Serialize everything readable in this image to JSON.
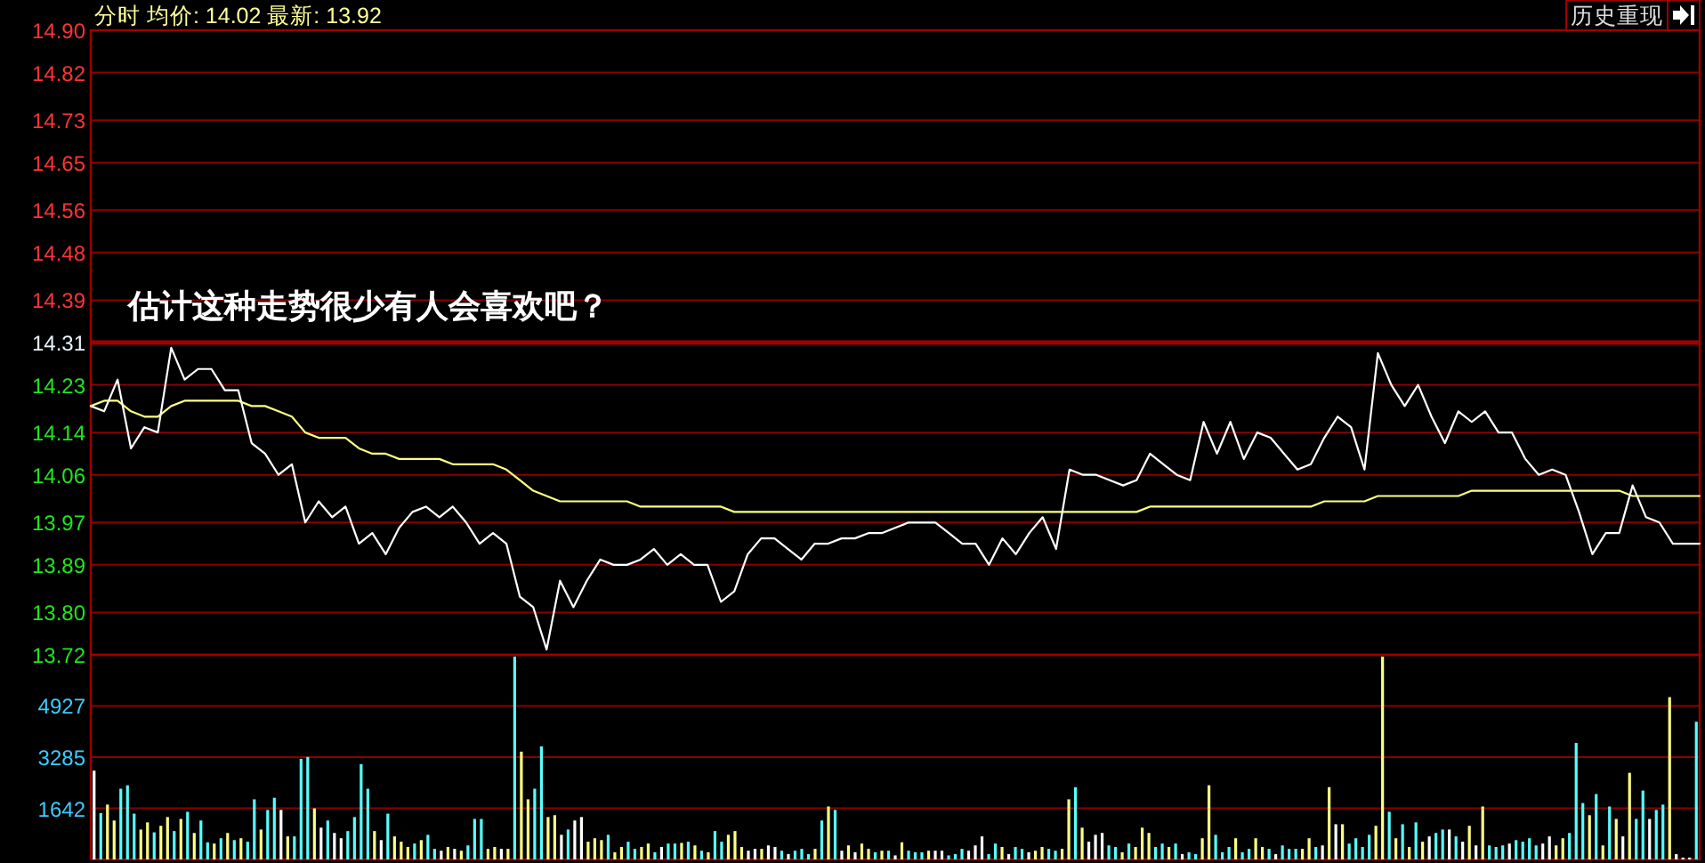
{
  "chart_data": [
    {
      "type": "line",
      "title": "分时 均价: 14.02 最新: 13.92",
      "annotations": [
        "估计这种走势很少有人会喜欢吧？",
        "历史重现"
      ],
      "categories": [
        null,
        null,
        null,
        null,
        null,
        null,
        null,
        null,
        null,
        null,
        null,
        null,
        null,
        null,
        null,
        null,
        null,
        null,
        null,
        null,
        null,
        null,
        null,
        null,
        null,
        null,
        null,
        null,
        null,
        null,
        null,
        null,
        null,
        null,
        null,
        null,
        null,
        null,
        null,
        null,
        null,
        null,
        null,
        null,
        null,
        null,
        null,
        null,
        null,
        null,
        null,
        null,
        null,
        null,
        null,
        null,
        null,
        null,
        null,
        null,
        null,
        null,
        null,
        null,
        null,
        null,
        null,
        null,
        null,
        null,
        null,
        null,
        null,
        null,
        null,
        null,
        null,
        null,
        null,
        null,
        null,
        null,
        null,
        null,
        null,
        null,
        null,
        null,
        null,
        null,
        null,
        null,
        null,
        null,
        null,
        null,
        null,
        null,
        null,
        null,
        null,
        null,
        null,
        null,
        null,
        null,
        null,
        null,
        null,
        null,
        null,
        null,
        null,
        null,
        null,
        null,
        null,
        null,
        null,
        null,
        null
      ],
      "ylim": [
        13.72,
        14.9
      ],
      "yticks": [
        13.72,
        {
          "value": 13.8,
          "label": "13.80"
        },
        13.89,
        13.97,
        14.06,
        14.14,
        14.23,
        14.31,
        14.39,
        14.48,
        14.56,
        14.65,
        14.73,
        14.82,
        {
          "value": 14.9,
          "label": "14.90"
        }
      ],
      "grid": "y",
      "tick_labels": "y",
      "ref_lines": [
        {
          "axis": "y",
          "value": 14.31,
          "color": "#a00000"
        }
      ],
      "series": [
        {
          "type": "line",
          "color": "#ffffff",
          "values": [
            14.19,
            14.18,
            14.24,
            14.11,
            14.15,
            14.14,
            14.3,
            14.24,
            14.26,
            14.26,
            14.22,
            14.22,
            14.12,
            14.1,
            14.06,
            14.08,
            13.97,
            14.01,
            13.98,
            14.0,
            13.93,
            13.95,
            13.91,
            13.96,
            13.99,
            14.0,
            13.98,
            14.0,
            13.97,
            13.93,
            13.95,
            13.93,
            13.83,
            13.81,
            13.73,
            13.86,
            13.81,
            13.86,
            13.9,
            13.89,
            13.89,
            13.9,
            13.92,
            13.89,
            13.91,
            13.89,
            13.89,
            13.82,
            13.84,
            13.91,
            13.94,
            13.94,
            13.92,
            13.9,
            13.93,
            13.93,
            13.94,
            13.94,
            13.95,
            13.95,
            13.96,
            13.97,
            13.97,
            13.97,
            13.95,
            13.93,
            13.93,
            13.89,
            13.94,
            13.91,
            13.95,
            13.98,
            13.92,
            14.07,
            14.06,
            14.06,
            14.05,
            14.04,
            14.05,
            14.1,
            14.08,
            14.06,
            14.05,
            14.16,
            14.1,
            14.16,
            14.09,
            14.14,
            14.13,
            14.1,
            14.07,
            14.08,
            14.13,
            14.17,
            14.15,
            14.07,
            14.29,
            14.23,
            14.19,
            14.23,
            14.17,
            14.12,
            14.18,
            14.16,
            14.18,
            14.14,
            14.14,
            14.09,
            14.06,
            14.07,
            14.06,
            13.99,
            13.91,
            13.95,
            13.95,
            14.04,
            13.98,
            13.97,
            13.93,
            13.93,
            13.93
          ]
        },
        {
          "type": "line",
          "color": "#ffff80",
          "values": [
            14.19,
            14.2,
            14.2,
            14.18,
            14.17,
            14.17,
            14.19,
            14.2,
            14.2,
            14.2,
            14.2,
            14.2,
            14.19,
            14.19,
            14.18,
            14.17,
            14.14,
            14.13,
            14.13,
            14.13,
            14.11,
            14.1,
            14.1,
            14.09,
            14.09,
            14.09,
            14.09,
            14.08,
            14.08,
            14.08,
            14.08,
            14.07,
            14.05,
            14.03,
            14.02,
            14.01,
            14.01,
            14.01,
            14.01,
            14.01,
            14.01,
            14.0,
            14.0,
            14.0,
            14.0,
            14.0,
            14.0,
            14.0,
            13.99,
            13.99,
            13.99,
            13.99,
            13.99,
            13.99,
            13.99,
            13.99,
            13.99,
            13.99,
            13.99,
            13.99,
            13.99,
            13.99,
            13.99,
            13.99,
            13.99,
            13.99,
            13.99,
            13.99,
            13.99,
            13.99,
            13.99,
            13.99,
            13.99,
            13.99,
            13.99,
            13.99,
            13.99,
            13.99,
            13.99,
            14.0,
            14.0,
            14.0,
            14.0,
            14.0,
            14.0,
            14.0,
            14.0,
            14.0,
            14.0,
            14.0,
            14.0,
            14.0,
            14.01,
            14.01,
            14.01,
            14.01,
            14.02,
            14.02,
            14.02,
            14.02,
            14.02,
            14.02,
            14.02,
            14.03,
            14.03,
            14.03,
            14.03,
            14.03,
            14.03,
            14.03,
            14.03,
            14.03,
            14.03,
            14.03,
            14.03,
            14.02,
            14.02,
            14.02,
            14.02,
            14.02,
            14.02
          ]
        }
      ]
    },
    {
      "type": "bar",
      "ylim": [
        0,
        6569
      ],
      "yticks": [
        1642,
        3285,
        4927
      ],
      "grid": "y",
      "tick_labels": "y",
      "categories": [
        null,
        null,
        null,
        null,
        null,
        null,
        null,
        null,
        null,
        null,
        null,
        null,
        null,
        null,
        null,
        null,
        null,
        null,
        null,
        null,
        null,
        null,
        null,
        null,
        null,
        null,
        null,
        null,
        null,
        null,
        null,
        null,
        null,
        null,
        null,
        null,
        null,
        null,
        null,
        null,
        null,
        null,
        null,
        null,
        null,
        null,
        null,
        null,
        null,
        null,
        null,
        null,
        null,
        null,
        null,
        null,
        null,
        null,
        null,
        null,
        null,
        null,
        null,
        null,
        null,
        null,
        null,
        null,
        null,
        null,
        null,
        null,
        null,
        null,
        null,
        null,
        null,
        null,
        null,
        null,
        null,
        null,
        null,
        null,
        null,
        null,
        null,
        null,
        null,
        null,
        null,
        null,
        null,
        null,
        null,
        null,
        null,
        null,
        null,
        null,
        null,
        null,
        null,
        null,
        null,
        null,
        null,
        null,
        null,
        null,
        null,
        null,
        null,
        null,
        null,
        null,
        null,
        null,
        null,
        null,
        null,
        null,
        null,
        null,
        null,
        null,
        null,
        null,
        null,
        null,
        null,
        null,
        null,
        null,
        null,
        null,
        null,
        null,
        null,
        null,
        null,
        null,
        null,
        null,
        null,
        null,
        null,
        null,
        null,
        null,
        null,
        null,
        null,
        null,
        null,
        null,
        null,
        null,
        null,
        null,
        null,
        null,
        null,
        null,
        null,
        null,
        null,
        null,
        null,
        null,
        null,
        null,
        null,
        null,
        null,
        null,
        null,
        null,
        null,
        null,
        null,
        null,
        null,
        null,
        null,
        null,
        null,
        null,
        null,
        null,
        null,
        null,
        null,
        null,
        null,
        null,
        null,
        null,
        null,
        null,
        null,
        null,
        null,
        null,
        null,
        null,
        null,
        null,
        null,
        null,
        null,
        null,
        null,
        null,
        null,
        null,
        null,
        null,
        null,
        null,
        null,
        null,
        null,
        null,
        null,
        null,
        null,
        null,
        null,
        null,
        null,
        null,
        null,
        null,
        null,
        null,
        null,
        null,
        null,
        null,
        null
      ],
      "values": [
        2850,
        1490,
        1760,
        1250,
        2270,
        2380,
        1470,
        960,
        1190,
        870,
        1080,
        1360,
        910,
        1300,
        1530,
        850,
        1250,
        550,
        510,
        680,
        850,
        620,
        680,
        570,
        1930,
        960,
        1590,
        1980,
        1590,
        740,
        740,
        3230,
        3290,
        1640,
        1020,
        1250,
        850,
        680,
        910,
        1360,
        3060,
        2270,
        910,
        620,
        1470,
        740,
        570,
        400,
        510,
        620,
        790,
        340,
        280,
        400,
        340,
        280,
        450,
        1300,
        1300,
        340,
        400,
        340,
        340,
        6510,
        3460,
        1930,
        2270,
        3630,
        1360,
        1420,
        790,
        960,
        1250,
        1360,
        570,
        680,
        620,
        790,
        230,
        400,
        570,
        340,
        400,
        510,
        230,
        400,
        510,
        510,
        530,
        570,
        450,
        280,
        230,
        910,
        570,
        790,
        910,
        400,
        280,
        340,
        340,
        450,
        400,
        280,
        170,
        280,
        340,
        170,
        340,
        1250,
        1700,
        1590,
        280,
        450,
        230,
        510,
        340,
        230,
        280,
        280,
        130,
        550,
        280,
        230,
        230,
        280,
        280,
        280,
        130,
        170,
        340,
        280,
        450,
        740,
        170,
        510,
        400,
        170,
        400,
        340,
        230,
        280,
        400,
        340,
        280,
        340,
        1930,
        2320,
        1020,
        570,
        790,
        850,
        450,
        400,
        230,
        510,
        400,
        1020,
        850,
        400,
        510,
        400,
        510,
        170,
        230,
        170,
        680,
        2380,
        790,
        230,
        400,
        680,
        230,
        340,
        680,
        400,
        340,
        170,
        450,
        340,
        340,
        340,
        680,
        400,
        450,
        2320,
        1130,
        1130,
        510,
        680,
        400,
        790,
        1080,
        6510,
        1530,
        680,
        1130,
        400,
        1190,
        570,
        740,
        850,
        960,
        960,
        740,
        570,
        1080,
        450,
        1700,
        450,
        400,
        450,
        510,
        620,
        570,
        680,
        450,
        510,
        740,
        450,
        680,
        850,
        3740,
        1810,
        1420,
        2100,
        450,
        1700,
        1300,
        740,
        2780,
        1300,
        2210,
        1300,
        1590,
        1760,
        5210,
        170,
        60,
        60,
        4420
      ],
      "colors": [
        "#ffffff",
        "#55ffff",
        "#ffff80",
        "#ffff80",
        "#55ffff",
        "#55ffff",
        "#55ffff",
        "#ffff80",
        "#ffff80",
        "#55ffff",
        "#ffff80",
        "#ffff80",
        "#55ffff",
        "#ffff80",
        "#55ffff",
        "#ffff80",
        "#55ffff",
        "#55ffff",
        "#ffff80",
        "#55ffff",
        "#ffff80",
        "#55ffff",
        "#ffff80",
        "#55ffff",
        "#55ffff",
        "#ffff80",
        "#55ffff",
        "#55ffff",
        "#ffffff",
        "#ffff80",
        "#55ffff",
        "#55ffff",
        "#55ffff",
        "#ffff80",
        "#ffffff",
        "#55ffff",
        "#ffffff",
        "#ffffff",
        "#55ffff",
        "#55ffff",
        "#55ffff",
        "#55ffff",
        "#ffff80",
        "#ffffff",
        "#55ffff",
        "#ffff80",
        "#ffff80",
        "#ffff80",
        "#55ffff",
        "#ffff80",
        "#55ffff",
        "#55ffff",
        "#ffffff",
        "#ffff80",
        "#ffffff",
        "#ffff80",
        "#55ffff",
        "#55ffff",
        "#55ffff",
        "#ffff80",
        "#ffff80",
        "#ffffff",
        "#ffff80",
        "#55ffff",
        "#ffff80",
        "#ffff80",
        "#55ffff",
        "#55ffff",
        "#ffff80",
        "#ffff80",
        "#ffffff",
        "#55ffff",
        "#ffffff",
        "#ffffff",
        "#ffff80",
        "#ffff80",
        "#ffff80",
        "#55ffff",
        "#ffff80",
        "#ffff80",
        "#55ffff",
        "#55ffff",
        "#ffff80",
        "#ffff80",
        "#55ffff",
        "#ffffff",
        "#55ffff",
        "#55ffff",
        "#ffff80",
        "#55ffff",
        "#ffff80",
        "#55ffff",
        "#ffff80",
        "#55ffff",
        "#55ffff",
        "#ffff80",
        "#ffff80",
        "#ffff80",
        "#ffffff",
        "#ffffff",
        "#ffff80",
        "#ffffff",
        "#ffffff",
        "#55ffff",
        "#ffffff",
        "#55ffff",
        "#55ffff",
        "#55ffff",
        "#ffff80",
        "#55ffff",
        "#ffff80",
        "#55ffff",
        "#ffffff",
        "#ffff80",
        "#ffffff",
        "#ffff80",
        "#ffff80",
        "#55ffff",
        "#ffff80",
        "#55ffff",
        "#ffffff",
        "#ffff80",
        "#55ffff",
        "#55ffff",
        "#55ffff",
        "#ffff80",
        "#ffffff",
        "#ffffff",
        "#55ffff",
        "#55ffff",
        "#55ffff",
        "#ffffff",
        "#ffffff",
        "#ffffff",
        "#55ffff",
        "#55ffff",
        "#ffff80",
        "#ffffff",
        "#55ffff",
        "#55ffff",
        "#ffffff",
        "#ffff80",
        "#ffff80",
        "#55ffff",
        "#55ffff",
        "#ffff80",
        "#ffff80",
        "#55ffff",
        "#ffff80",
        "#ffffff",
        "#ffffff",
        "#ffffff",
        "#55ffff",
        "#55ffff",
        "#ffff80",
        "#55ffff",
        "#ffff80",
        "#ffff80",
        "#ffff80",
        "#55ffff",
        "#55ffff",
        "#ffff80",
        "#55ffff",
        "#ffffff",
        "#55ffff",
        "#55ffff",
        "#ffff80",
        "#ffff80",
        "#55ffff",
        "#55ffff",
        "#55ffff",
        "#ffff80",
        "#55ffff",
        "#55ffff",
        "#ffff80",
        "#ffff80",
        "#55ffff",
        "#ffffff",
        "#55ffff",
        "#55ffff",
        "#55ffff",
        "#ffff80",
        "#ffff80",
        "#55ffff",
        "#ffffff",
        "#ffff80",
        "#ffffff",
        "#ffff80",
        "#55ffff",
        "#55ffff",
        "#55ffff",
        "#55ffff",
        "#ffff80",
        "#ffff80",
        "#55ffff",
        "#ffff80",
        "#55ffff",
        "#ffff80",
        "#55ffff",
        "#ffff80",
        "#ffffff",
        "#55ffff",
        "#55ffff",
        "#ffffff",
        "#55ffff",
        "#ffffff",
        "#ffff80",
        "#ffffff",
        "#ffff80",
        "#55ffff",
        "#55ffff",
        "#55ffff",
        "#ffffff",
        "#55ffff",
        "#55ffff",
        "#55ffff",
        "#55ffff",
        "#ffffff",
        "#ffffff",
        "#ffff80",
        "#ffff80",
        "#55ffff",
        "#55ffff",
        "#55ffff",
        "#ffff80",
        "#55ffff",
        "#ffff80",
        "#55ffff",
        "#ffff80",
        "#ffffff",
        "#ffff80",
        "#55ffff",
        "#55ffff",
        "#ffffff",
        "#55ffff",
        "#55ffff",
        "#ffff80",
        "#ffffff",
        "#ffffff",
        "#ffffff",
        "#55ffff"
      ]
    }
  ]
}
